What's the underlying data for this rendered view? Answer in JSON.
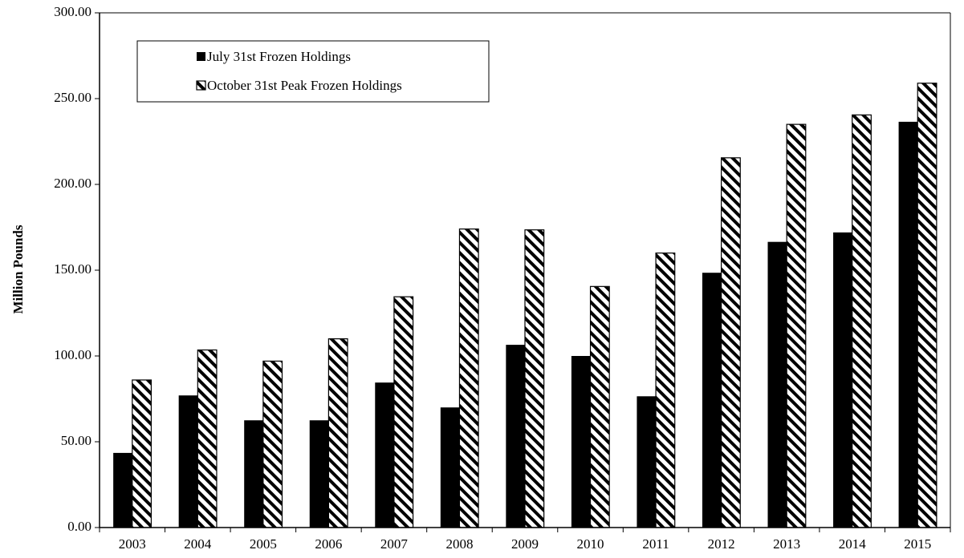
{
  "chart_data": {
    "type": "bar",
    "title": "",
    "xlabel": "",
    "ylabel": "Million Pounds",
    "ylim": [
      0,
      300
    ],
    "yticks": [
      "0.00",
      "50.00",
      "100.00",
      "150.00",
      "200.00",
      "250.00",
      "300.00"
    ],
    "categories": [
      "2003",
      "2004",
      "2005",
      "2006",
      "2007",
      "2008",
      "2009",
      "2010",
      "2011",
      "2012",
      "2013",
      "2014",
      "2015"
    ],
    "series": [
      {
        "name": "July 31st Frozen Holdings",
        "fill": "solid",
        "color": "#000000",
        "values": [
          43.5,
          77.0,
          62.5,
          62.5,
          84.5,
          70.0,
          106.5,
          100.0,
          76.5,
          148.5,
          166.5,
          172.0,
          236.5
        ]
      },
      {
        "name": "October 31st Peak Frozen Holdings",
        "fill": "diagonal-hatch",
        "color": "#000000",
        "values": [
          86.0,
          103.5,
          97.0,
          110.0,
          134.5,
          174.0,
          173.5,
          140.5,
          160.0,
          215.5,
          235.0,
          240.5,
          259.0
        ]
      }
    ],
    "grid": false,
    "legend_position": "top-left"
  }
}
